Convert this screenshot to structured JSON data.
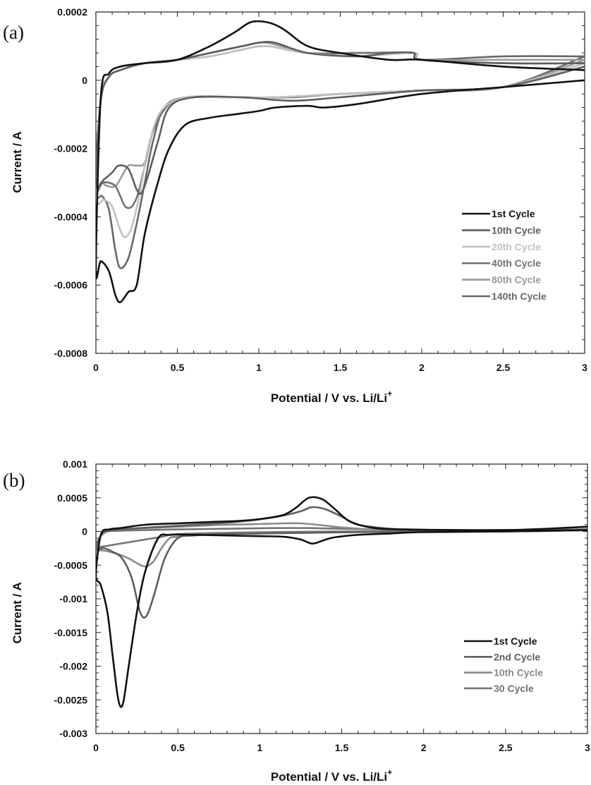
{
  "chart_data": [
    {
      "type": "line",
      "panel_label": "(a)",
      "xlabel": "Potential / V vs. Li/Li",
      "xlabel_sup": "+",
      "ylabel": "Current / A",
      "xlim": [
        0,
        3
      ],
      "ylim": [
        -0.0008,
        0.0002
      ],
      "xticks": [
        0,
        0.5,
        1,
        1.5,
        2,
        2.5,
        3
      ],
      "xtick_labels": [
        "0",
        "0.5",
        "1",
        "1.5",
        "2",
        "2.5",
        "3"
      ],
      "yticks": [
        0.0002,
        0,
        -0.0002,
        -0.0004,
        -0.0006,
        -0.0008
      ],
      "ytick_labels": [
        "0.0002",
        "0",
        "-0.0002",
        "-0.0004",
        "-0.0006",
        "-0.0008"
      ],
      "legend_position": "lower-right",
      "series": [
        {
          "name": "1st Cycle",
          "color": "#111111",
          "x": [
            3.0,
            2.5,
            2.0,
            1.6,
            1.4,
            1.3,
            1.1,
            1.0,
            0.85,
            0.7,
            0.55,
            0.45,
            0.38,
            0.3,
            0.25,
            0.2,
            0.15,
            0.12,
            0.08,
            0.03,
            0.0,
            0.03,
            0.08,
            0.15,
            0.3,
            0.5,
            0.7,
            0.85,
            0.95,
            1.05,
            1.15,
            1.3,
            1.5,
            1.8,
            2.0,
            2.5,
            3.0
          ],
          "y": [
            0.0,
            -2e-05,
            -4e-05,
            -7e-05,
            -8e-05,
            -7.5e-05,
            -8e-05,
            -9e-05,
            -0.0001,
            -0.00011,
            -0.00013,
            -0.0002,
            -0.0003,
            -0.00045,
            -0.0006,
            -0.00062,
            -0.00065,
            -0.00063,
            -0.00056,
            -0.00053,
            -0.00055,
            -5e-05,
            2e-05,
            4e-05,
            5e-05,
            6e-05,
            0.0001,
            0.00014,
            0.00017,
            0.00017,
            0.00015,
            0.0001,
            8e-05,
            6e-05,
            6e-05,
            4e-05,
            3e-05
          ]
        },
        {
          "name": "10th Cycle",
          "color": "#5e5e5e",
          "x": [
            3.0,
            2.5,
            2.0,
            1.5,
            1.2,
            0.9,
            0.6,
            0.45,
            0.38,
            0.32,
            0.28,
            0.25,
            0.2,
            0.14,
            0.1,
            0.05,
            0.0,
            0.03,
            0.08,
            0.15,
            0.3,
            0.5,
            0.7,
            0.9,
            1.0,
            1.1,
            1.3,
            1.6,
            1.8,
            1.95,
            2.0,
            2.5,
            3.0
          ],
          "y": [
            4e-05,
            -2e-05,
            -3e-05,
            -5e-05,
            -6e-05,
            -5e-05,
            -5e-05,
            -8e-05,
            -0.00018,
            -0.00028,
            -0.00033,
            -0.00032,
            -0.00026,
            -0.00025,
            -0.00027,
            -0.00029,
            -0.0003,
            -6e-05,
            1e-05,
            3e-05,
            5e-05,
            6e-05,
            8e-05,
            0.0001,
            0.00011,
            0.00011,
            8e-05,
            7e-05,
            8e-05,
            8e-05,
            6e-05,
            5e-05,
            5e-05
          ]
        },
        {
          "name": "20th Cycle",
          "color": "#c2c2c2",
          "x": [
            3.0,
            2.5,
            2.0,
            1.5,
            1.1,
            0.8,
            0.55,
            0.4,
            0.32,
            0.27,
            0.22,
            0.18,
            0.15,
            0.1,
            0.05,
            0.0,
            0.03,
            0.08,
            0.15,
            0.3,
            0.5,
            0.7,
            0.9,
            1.05,
            1.3,
            1.6,
            1.95,
            2.0,
            2.5,
            3.0
          ],
          "y": [
            5e-05,
            -2e-05,
            -3e-05,
            -4e-05,
            -5e-05,
            -5e-05,
            -5e-05,
            -9e-05,
            -0.0002,
            -0.00033,
            -0.00043,
            -0.00046,
            -0.00044,
            -0.00037,
            -0.00035,
            -0.00034,
            -5e-05,
            1e-05,
            3e-05,
            5e-05,
            6e-05,
            7e-05,
            9e-05,
            0.0001,
            8e-05,
            7e-05,
            8e-05,
            6e-05,
            5e-05,
            5e-05
          ]
        },
        {
          "name": "40th Cycle",
          "color": "#727272",
          "x": [
            3.0,
            2.5,
            2.0,
            1.5,
            1.2,
            0.9,
            0.6,
            0.45,
            0.35,
            0.3,
            0.26,
            0.22,
            0.18,
            0.15,
            0.12,
            0.08,
            0.04,
            0.0,
            0.03,
            0.08,
            0.15,
            0.3,
            0.5,
            0.7,
            0.9,
            1.05,
            1.3,
            1.6,
            1.95,
            2.0,
            2.5,
            3.0
          ],
          "y": [
            5e-05,
            -2e-05,
            -3e-05,
            -4e-05,
            -5e-05,
            -5e-05,
            -5e-05,
            -7e-05,
            -0.00015,
            -0.00025,
            -0.00033,
            -0.00037,
            -0.00037,
            -0.00034,
            -0.00031,
            -0.0003,
            -0.0003,
            -0.00031,
            -5e-05,
            1e-05,
            3e-05,
            5e-05,
            6e-05,
            7e-05,
            9e-05,
            0.0001,
            8e-05,
            8e-05,
            8e-05,
            6e-05,
            5e-05,
            5e-05
          ]
        },
        {
          "name": "80th Cycle",
          "color": "#9a9a9a",
          "x": [
            3.0,
            2.5,
            2.0,
            1.5,
            1.1,
            0.8,
            0.55,
            0.42,
            0.35,
            0.3,
            0.25,
            0.2,
            0.16,
            0.12,
            0.07,
            0.03,
            0.0,
            0.03,
            0.08,
            0.15,
            0.3,
            0.5,
            0.7,
            0.9,
            1.05,
            1.3,
            1.6,
            1.95,
            2.0,
            2.5,
            3.0
          ],
          "y": [
            6e-05,
            -2e-05,
            -3e-05,
            -4e-05,
            -5e-05,
            -5e-05,
            -5e-05,
            -8e-05,
            -0.00015,
            -0.00024,
            -0.00025,
            -0.00025,
            -0.00028,
            -0.00031,
            -0.00031,
            -0.0003,
            -0.00032,
            -5e-05,
            1e-05,
            3e-05,
            5e-05,
            6e-05,
            8e-05,
            0.0001,
            0.00011,
            8e-05,
            8e-05,
            8e-05,
            6e-05,
            6e-05,
            6e-05
          ]
        },
        {
          "name": "140th Cycle",
          "color": "#686868",
          "x": [
            3.0,
            2.5,
            2.0,
            1.5,
            1.1,
            0.8,
            0.55,
            0.42,
            0.35,
            0.3,
            0.25,
            0.2,
            0.15,
            0.12,
            0.08,
            0.04,
            0.0,
            0.03,
            0.08,
            0.15,
            0.3,
            0.5,
            0.7,
            0.9,
            1.05,
            1.3,
            1.6,
            1.95,
            2.0,
            2.5,
            3.0
          ],
          "y": [
            7e-05,
            -2e-05,
            -3e-05,
            -4e-05,
            -5e-05,
            -5e-05,
            -5e-05,
            -8e-05,
            -0.00018,
            -0.0003,
            -0.00042,
            -0.00052,
            -0.00055,
            -0.0005,
            -0.00038,
            -0.00034,
            -0.00032,
            -5e-05,
            1e-05,
            3e-05,
            5e-05,
            6e-05,
            8e-05,
            0.0001,
            0.00011,
            8e-05,
            8e-05,
            8e-05,
            6e-05,
            7e-05,
            7e-05
          ]
        }
      ]
    },
    {
      "type": "line",
      "panel_label": "(b)",
      "xlabel": "Potential / V vs. Li/Li",
      "xlabel_sup": "+",
      "ylabel": "Current / A",
      "xlim": [
        0,
        3
      ],
      "ylim": [
        -0.003,
        0.001
      ],
      "xticks": [
        0,
        0.5,
        1,
        1.5,
        2,
        2.5,
        3
      ],
      "xtick_labels": [
        "0",
        "0.5",
        "1",
        "1.5",
        "2",
        "2.5",
        "3"
      ],
      "yticks": [
        0.001,
        0.0005,
        0,
        -0.0005,
        -0.001,
        -0.0015,
        -0.002,
        -0.0025,
        -0.003
      ],
      "ytick_labels": [
        "0.001",
        "0.0005",
        "0",
        "-0.0005",
        "-0.001",
        "-0.0015",
        "-0.002",
        "-0.0025",
        "-0.003"
      ],
      "legend_position": "lower-right",
      "series": [
        {
          "name": "1st Cycle",
          "color": "#111111",
          "x": [
            3.0,
            2.5,
            2.0,
            1.8,
            1.6,
            1.45,
            1.38,
            1.32,
            1.25,
            1.15,
            1.0,
            0.8,
            0.6,
            0.45,
            0.38,
            0.3,
            0.25,
            0.2,
            0.17,
            0.15,
            0.13,
            0.1,
            0.07,
            0.03,
            0.0,
            0.03,
            0.08,
            0.15,
            0.3,
            0.5,
            0.7,
            0.9,
            1.05,
            1.15,
            1.22,
            1.3,
            1.38,
            1.45,
            1.55,
            1.7,
            1.9,
            2.5,
            3.0
          ],
          "y": [
            2e-05,
            0.0,
            -1e-05,
            -3e-05,
            -5e-05,
            -9e-05,
            -0.00014,
            -0.00018,
            -0.00012,
            -8e-05,
            -7e-05,
            -6e-05,
            -5e-05,
            -5e-05,
            -0.0001,
            -0.0006,
            -0.0012,
            -0.002,
            -0.0025,
            -0.0026,
            -0.0024,
            -0.0018,
            -0.0012,
            -0.0008,
            -0.00065,
            -5e-05,
            3e-05,
            5e-05,
            0.0001,
            0.00012,
            0.00014,
            0.00016,
            0.0002,
            0.00025,
            0.00035,
            0.0005,
            0.00048,
            0.00035,
            0.00015,
            5e-05,
            3e-05,
            2e-05,
            7e-05
          ]
        },
        {
          "name": "2nd Cycle",
          "color": "#5e5e5e",
          "x": [
            3.0,
            2.5,
            2.0,
            1.6,
            1.3,
            1.0,
            0.75,
            0.6,
            0.5,
            0.42,
            0.36,
            0.31,
            0.27,
            0.22,
            0.16,
            0.1,
            0.05,
            0.0,
            0.04,
            0.1,
            0.2,
            0.4,
            0.6,
            0.8,
            1.0,
            1.15,
            1.25,
            1.32,
            1.4,
            1.5,
            1.6,
            1.8,
            2.0,
            2.5,
            3.0
          ],
          "y": [
            2e-05,
            0.0,
            0.0,
            -1e-05,
            -2e-05,
            -3e-05,
            -4e-05,
            -6e-05,
            -0.0001,
            -0.0004,
            -0.0009,
            -0.00125,
            -0.0012,
            -0.0007,
            -0.0004,
            -0.0003,
            -0.00025,
            -0.00025,
            -3e-05,
            2e-05,
            4e-05,
            7e-05,
            0.0001,
            0.00013,
            0.00018,
            0.00024,
            0.0003,
            0.00036,
            0.00033,
            0.00022,
            0.0001,
            4e-05,
            2e-05,
            2e-05,
            3e-05
          ]
        },
        {
          "name": "10th Cycle",
          "color": "#8a8a8a",
          "x": [
            3.0,
            2.5,
            2.0,
            1.5,
            1.1,
            0.8,
            0.6,
            0.5,
            0.45,
            0.4,
            0.35,
            0.3,
            0.25,
            0.2,
            0.15,
            0.08,
            0.03,
            0.0,
            0.04,
            0.1,
            0.2,
            0.4,
            0.6,
            0.8,
            1.0,
            1.15,
            1.25,
            1.35,
            1.5,
            1.7,
            2.0,
            2.5,
            3.0
          ],
          "y": [
            2e-05,
            0.0,
            0.0,
            -1e-05,
            -2e-05,
            -3e-05,
            -5e-05,
            -8e-05,
            -0.0001,
            -0.00025,
            -0.00045,
            -0.00052,
            -0.00047,
            -0.0004,
            -0.00035,
            -0.0003,
            -0.00028,
            -0.00028,
            -2e-05,
            2e-05,
            4e-05,
            6e-05,
            8e-05,
            0.0001,
            0.00011,
            0.00012,
            0.00012,
            0.0001,
            6e-05,
            3e-05,
            2e-05,
            2e-05,
            2e-05
          ]
        },
        {
          "name": "30 Cycle",
          "color": "#737373",
          "x": [
            3.0,
            2.5,
            2.0,
            1.5,
            1.0,
            0.8,
            0.6,
            0.5,
            0.45,
            0.4,
            0.3,
            0.2,
            0.1,
            0.05,
            0.0,
            0.05,
            0.15,
            0.3,
            0.5,
            0.8,
            1.1,
            1.3,
            1.5,
            1.7,
            2.0,
            2.5,
            3.0
          ],
          "y": [
            2e-05,
            0.0,
            0.0,
            0.0,
            -1e-05,
            -2e-05,
            -3e-05,
            -4e-05,
            -5e-05,
            -8e-05,
            -0.00012,
            -0.00016,
            -0.0002,
            -0.00022,
            -0.00022,
            -2e-05,
            1e-05,
            2e-05,
            3e-05,
            4e-05,
            5e-05,
            5e-05,
            4e-05,
            3e-05,
            2e-05,
            2e-05,
            2e-05
          ]
        }
      ]
    }
  ]
}
